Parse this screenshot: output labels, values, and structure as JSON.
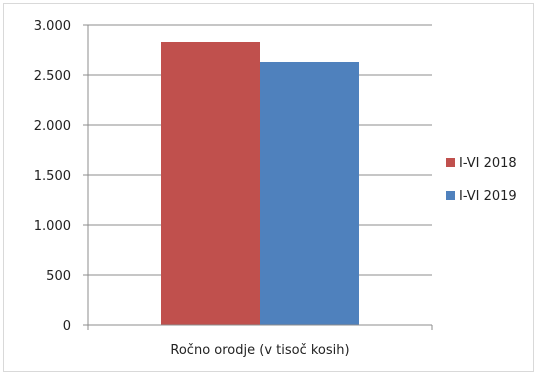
{
  "chart_data": {
    "type": "bar",
    "categories": [
      "Ročno orodje (v tisoč kosih)"
    ],
    "series": [
      {
        "name": "I-VI 2018",
        "values": [
          2830
        ],
        "color": "#c0504d"
      },
      {
        "name": "I-VI 2019",
        "values": [
          2630
        ],
        "color": "#4f81bd"
      }
    ],
    "ylim": [
      0,
      3000
    ],
    "yticks": [
      0,
      500,
      1000,
      1500,
      2000,
      2500,
      3000
    ],
    "ytick_labels": [
      "0",
      "500",
      "1.000",
      "1.500",
      "2.000",
      "2.500",
      "3.000"
    ],
    "xlabel": "Ročno orodje (v tisoč kosih)",
    "grid": true,
    "legend_position": "right"
  }
}
